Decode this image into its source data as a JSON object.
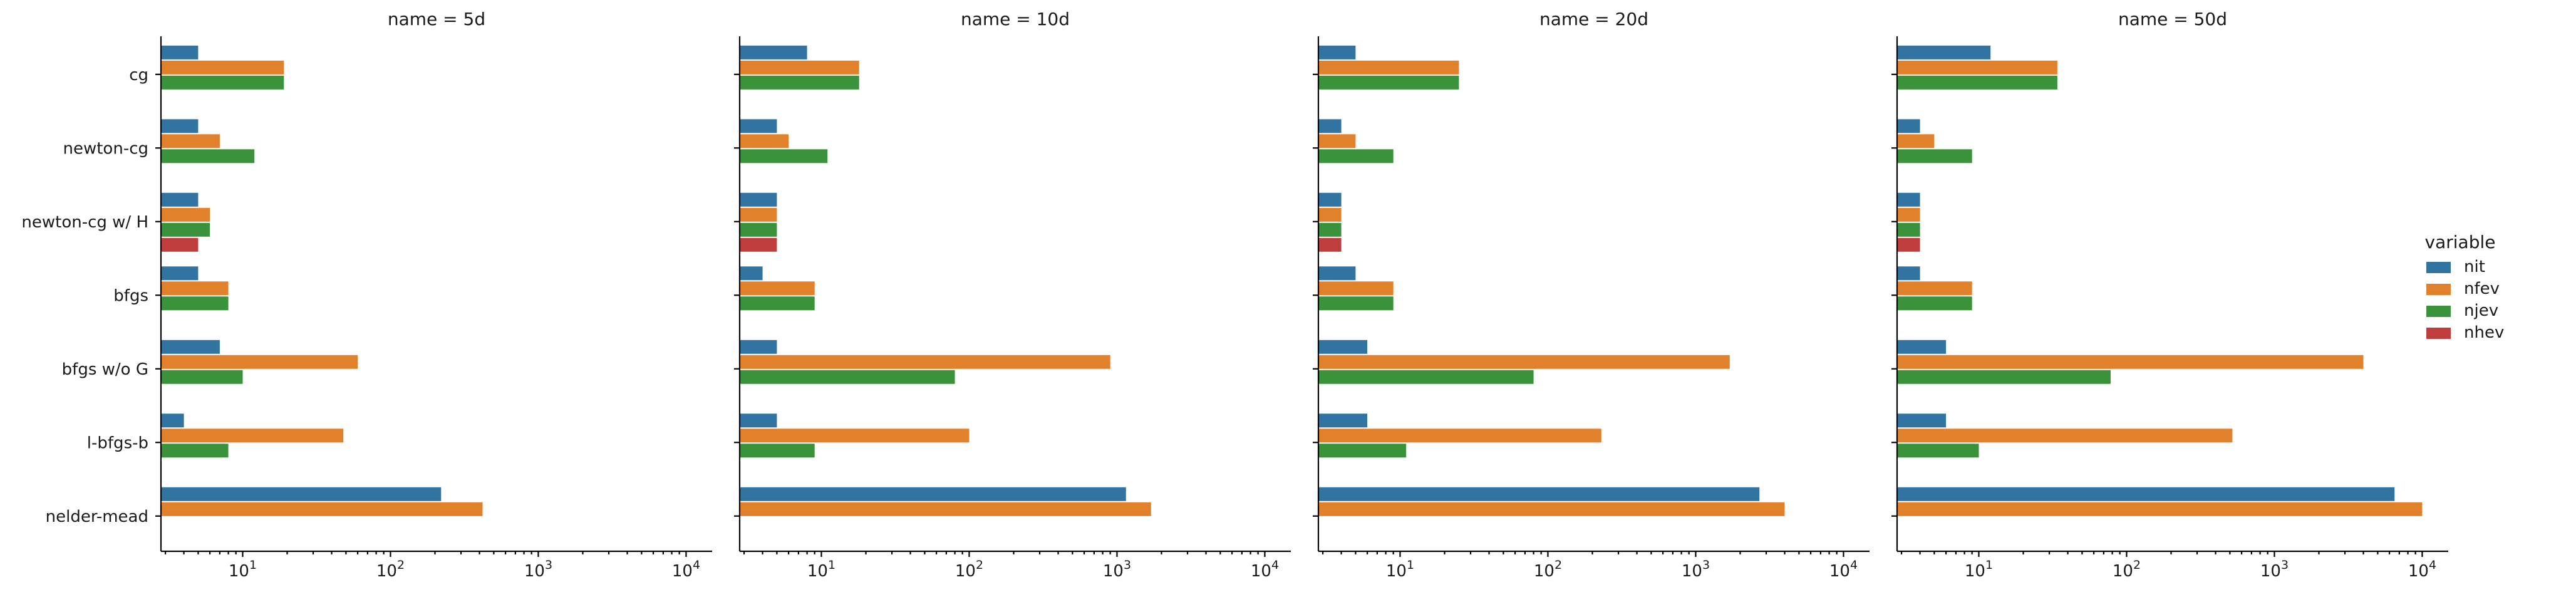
{
  "chart_data": {
    "type": "bar",
    "orientation": "horizontal",
    "xscale": "log",
    "xlim": [
      2.8,
      15000
    ],
    "xticks": [
      10,
      100,
      1000,
      10000
    ],
    "xtick_labels": [
      {
        "base": "10",
        "exp": "1"
      },
      {
        "base": "10",
        "exp": "2"
      },
      {
        "base": "10",
        "exp": "3"
      },
      {
        "base": "10",
        "exp": "4"
      }
    ],
    "categories": [
      "cg",
      "newton-cg",
      "newton-cg w/ H",
      "bfgs",
      "bfgs w/o G",
      "l-bfgs-b",
      "nelder-mead"
    ],
    "legend": {
      "title": "variable",
      "placement": "right",
      "entries": [
        "nit",
        "nfev",
        "njev",
        "nhev"
      ]
    },
    "colors": {
      "nit": "#3274a1",
      "nfev": "#e1812c",
      "njev": "#3a923a",
      "nhev": "#c03d3e"
    },
    "panels": [
      {
        "title": "name = 5d",
        "series": [
          {
            "name": "nit",
            "values": [
              5,
              5,
              5,
              5,
              7,
              4,
              220
            ]
          },
          {
            "name": "nfev",
            "values": [
              19,
              7,
              6,
              8,
              60,
              48,
              420
            ]
          },
          {
            "name": "njev",
            "values": [
              19,
              12,
              6,
              8,
              10,
              8,
              null
            ]
          },
          {
            "name": "nhev",
            "values": [
              null,
              null,
              5,
              null,
              null,
              null,
              null
            ]
          }
        ]
      },
      {
        "title": "name = 10d",
        "series": [
          {
            "name": "nit",
            "values": [
              8,
              5,
              5,
              4,
              5,
              5,
              1150
            ]
          },
          {
            "name": "nfev",
            "values": [
              18,
              6,
              5,
              9,
              900,
              100,
              1700
            ]
          },
          {
            "name": "njev",
            "values": [
              18,
              11,
              5,
              9,
              80,
              9,
              null
            ]
          },
          {
            "name": "nhev",
            "values": [
              null,
              null,
              5,
              null,
              null,
              null,
              null
            ]
          }
        ]
      },
      {
        "title": "name = 20d",
        "series": [
          {
            "name": "nit",
            "values": [
              5,
              4,
              4,
              5,
              6,
              6,
              2700
            ]
          },
          {
            "name": "nfev",
            "values": [
              25,
              5,
              4,
              9,
              1700,
              230,
              4000
            ]
          },
          {
            "name": "njev",
            "values": [
              25,
              9,
              4,
              9,
              80,
              11,
              null
            ]
          },
          {
            "name": "nhev",
            "values": [
              null,
              null,
              4,
              null,
              null,
              null,
              null
            ]
          }
        ]
      },
      {
        "title": "name = 50d",
        "series": [
          {
            "name": "nit",
            "values": [
              12,
              4,
              4,
              4,
              6,
              6,
              6500
            ]
          },
          {
            "name": "nfev",
            "values": [
              34,
              5,
              4,
              9,
              4000,
              520,
              10000
            ]
          },
          {
            "name": "njev",
            "values": [
              34,
              9,
              4,
              9,
              78,
              10,
              null
            ]
          },
          {
            "name": "nhev",
            "values": [
              null,
              null,
              4,
              null,
              null,
              null,
              null
            ]
          }
        ]
      }
    ]
  }
}
